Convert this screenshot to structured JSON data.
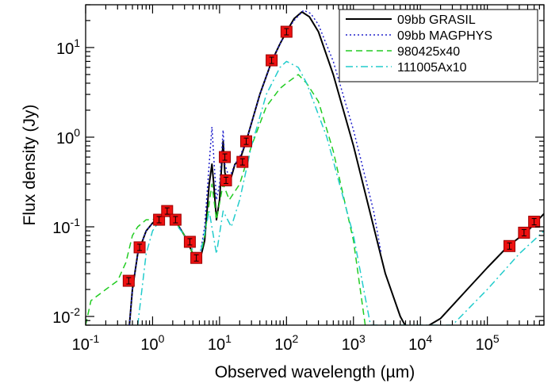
{
  "chart_data": {
    "type": "line",
    "xlabel": "Observed wavelength (µm)",
    "ylabel": "Flux density (Jy)",
    "x_scale": "log",
    "y_scale": "log",
    "xlim": [
      0.1,
      700000
    ],
    "ylim": [
      0.008,
      30
    ],
    "grid": false,
    "legend_position": "top-right",
    "x_ticks": [
      {
        "value": 0.1,
        "base": "10",
        "exp": "-1"
      },
      {
        "value": 1,
        "base": "10",
        "exp": "0"
      },
      {
        "value": 10,
        "base": "10",
        "exp": "1"
      },
      {
        "value": 100,
        "base": "10",
        "exp": "2"
      },
      {
        "value": 1000,
        "base": "10",
        "exp": "3"
      },
      {
        "value": 10000,
        "base": "10",
        "exp": "4"
      },
      {
        "value": 100000,
        "base": "10",
        "exp": "5"
      }
    ],
    "y_ticks": [
      {
        "value": 0.01,
        "base": "10",
        "exp": "-2"
      },
      {
        "value": 0.1,
        "base": "10",
        "exp": "-1"
      },
      {
        "value": 1,
        "base": "10",
        "exp": "0"
      },
      {
        "value": 10,
        "base": "10",
        "exp": "1"
      }
    ],
    "series": [
      {
        "name": "09bb GRASIL",
        "color": "#000000",
        "dash": "solid",
        "points": [
          [
            0.45,
            0.008
          ],
          [
            0.5,
            0.02
          ],
          [
            0.6,
            0.05
          ],
          [
            0.8,
            0.09
          ],
          [
            1.0,
            0.11
          ],
          [
            1.3,
            0.13
          ],
          [
            1.6,
            0.15
          ],
          [
            2.0,
            0.13
          ],
          [
            3.0,
            0.08
          ],
          [
            4.0,
            0.05
          ],
          [
            5.0,
            0.04
          ],
          [
            6.0,
            0.07
          ],
          [
            7.0,
            0.3
          ],
          [
            7.7,
            0.5
          ],
          [
            8.2,
            0.3
          ],
          [
            9.0,
            0.12
          ],
          [
            10.0,
            0.2
          ],
          [
            11.3,
            0.9
          ],
          [
            12.0,
            0.4
          ],
          [
            14.0,
            0.3
          ],
          [
            17.0,
            0.5
          ],
          [
            20.0,
            0.55
          ],
          [
            25.0,
            0.9
          ],
          [
            40.0,
            3.0
          ],
          [
            60.0,
            7.0
          ],
          [
            80.0,
            11.0
          ],
          [
            100.0,
            15.0
          ],
          [
            130.0,
            21.0
          ],
          [
            170.0,
            25.0
          ],
          [
            220.0,
            22.0
          ],
          [
            300.0,
            15.0
          ],
          [
            500.0,
            5.0
          ],
          [
            1000.0,
            0.8
          ],
          [
            2000.0,
            0.1
          ],
          [
            3000.0,
            0.03
          ],
          [
            5000.0,
            0.01
          ],
          [
            6500.0,
            0.007
          ],
          [
            10000.0,
            0.007
          ],
          [
            20000.0,
            0.0095
          ],
          [
            50000.0,
            0.02
          ],
          [
            100000.0,
            0.035
          ],
          [
            200000.0,
            0.06
          ],
          [
            400000.0,
            0.09
          ],
          [
            700000.0,
            0.14
          ]
        ]
      },
      {
        "name": "09bb MAGPHYS",
        "color": "#2222cc",
        "dash": "dotted",
        "points": [
          [
            0.45,
            0.008
          ],
          [
            0.5,
            0.02
          ],
          [
            0.6,
            0.05
          ],
          [
            0.8,
            0.09
          ],
          [
            1.0,
            0.11
          ],
          [
            1.3,
            0.13
          ],
          [
            1.6,
            0.15
          ],
          [
            2.0,
            0.13
          ],
          [
            3.0,
            0.08
          ],
          [
            4.0,
            0.05
          ],
          [
            5.0,
            0.045
          ],
          [
            6.0,
            0.1
          ],
          [
            7.0,
            0.5
          ],
          [
            7.7,
            1.3
          ],
          [
            8.2,
            0.6
          ],
          [
            9.0,
            0.2
          ],
          [
            10.0,
            0.3
          ],
          [
            11.3,
            1.2
          ],
          [
            12.0,
            0.5
          ],
          [
            14.0,
            0.35
          ],
          [
            17.0,
            0.5
          ],
          [
            20.0,
            0.6
          ],
          [
            25.0,
            0.9
          ],
          [
            40.0,
            3.0
          ],
          [
            60.0,
            7.0
          ],
          [
            80.0,
            11.0
          ],
          [
            100.0,
            15.0
          ],
          [
            130.0,
            20.0
          ],
          [
            180.0,
            26.0
          ],
          [
            230.0,
            24.0
          ],
          [
            300.0,
            18.0
          ],
          [
            500.0,
            7.0
          ],
          [
            1000.0,
            1.2
          ],
          [
            2000.0,
            0.15
          ],
          [
            2600.0,
            0.05
          ]
        ]
      },
      {
        "name": "980425x40",
        "color": "#22cc22",
        "dash": "dashed",
        "points": [
          [
            0.1,
            0.008
          ],
          [
            0.12,
            0.015
          ],
          [
            0.2,
            0.02
          ],
          [
            0.3,
            0.025
          ],
          [
            0.4,
            0.04
          ],
          [
            0.5,
            0.08
          ],
          [
            0.6,
            0.1
          ],
          [
            0.8,
            0.12
          ],
          [
            1.0,
            0.12
          ],
          [
            1.3,
            0.13
          ],
          [
            1.6,
            0.15
          ],
          [
            2.0,
            0.13
          ],
          [
            3.0,
            0.08
          ],
          [
            4.0,
            0.05
          ],
          [
            5.0,
            0.04
          ],
          [
            6.0,
            0.08
          ],
          [
            7.7,
            0.3
          ],
          [
            9.0,
            0.12
          ],
          [
            11.3,
            0.3
          ],
          [
            14.0,
            0.2
          ],
          [
            20.0,
            0.3
          ],
          [
            30.0,
            0.8
          ],
          [
            50.0,
            2.2
          ],
          [
            80.0,
            3.5
          ],
          [
            100.0,
            4.0
          ],
          [
            150.0,
            5.0
          ],
          [
            200.0,
            4.0
          ],
          [
            300.0,
            2.5
          ],
          [
            500.0,
            0.7
          ],
          [
            1000.0,
            0.07
          ],
          [
            1500.0,
            0.008
          ]
        ]
      },
      {
        "name": "111005Ax10",
        "color": "#22cccc",
        "dash": "dashdot",
        "points": [
          [
            0.6,
            0.008
          ],
          [
            0.8,
            0.05
          ],
          [
            1.0,
            0.09
          ],
          [
            1.3,
            0.12
          ],
          [
            1.6,
            0.14
          ],
          [
            2.0,
            0.12
          ],
          [
            3.0,
            0.08
          ],
          [
            4.0,
            0.055
          ],
          [
            5.0,
            0.045
          ],
          [
            7.0,
            0.15
          ],
          [
            9.0,
            0.05
          ],
          [
            11.3,
            0.15
          ],
          [
            15.0,
            0.1
          ],
          [
            20.0,
            0.2
          ],
          [
            30.0,
            0.8
          ],
          [
            50.0,
            3.0
          ],
          [
            80.0,
            6.0
          ],
          [
            100.0,
            7.0
          ],
          [
            150.0,
            6.0
          ],
          [
            200.0,
            4.0
          ],
          [
            400.0,
            1.0
          ],
          [
            1000.0,
            0.08
          ],
          [
            1800.0,
            0.008
          ],
          [
            30000.0,
            0.008
          ],
          [
            100000.0,
            0.02
          ],
          [
            300000.0,
            0.05
          ],
          [
            700000.0,
            0.09
          ]
        ]
      }
    ],
    "photometry": [
      {
        "x": 0.44,
        "y": 0.025
      },
      {
        "x": 0.64,
        "y": 0.059
      },
      {
        "x": 1.25,
        "y": 0.12
      },
      {
        "x": 1.65,
        "y": 0.15
      },
      {
        "x": 2.2,
        "y": 0.12
      },
      {
        "x": 3.6,
        "y": 0.068
      },
      {
        "x": 4.5,
        "y": 0.045
      },
      {
        "x": 12.0,
        "y": 0.6
      },
      {
        "x": 12.5,
        "y": 0.33
      },
      {
        "x": 22.0,
        "y": 0.53
      },
      {
        "x": 25.0,
        "y": 0.9
      },
      {
        "x": 60.0,
        "y": 7.2
      },
      {
        "x": 100.0,
        "y": 15.0
      },
      {
        "x": 214000.0,
        "y": 0.061
      },
      {
        "x": 353000.0,
        "y": 0.086
      },
      {
        "x": 500000.0,
        "y": 0.114
      }
    ]
  }
}
